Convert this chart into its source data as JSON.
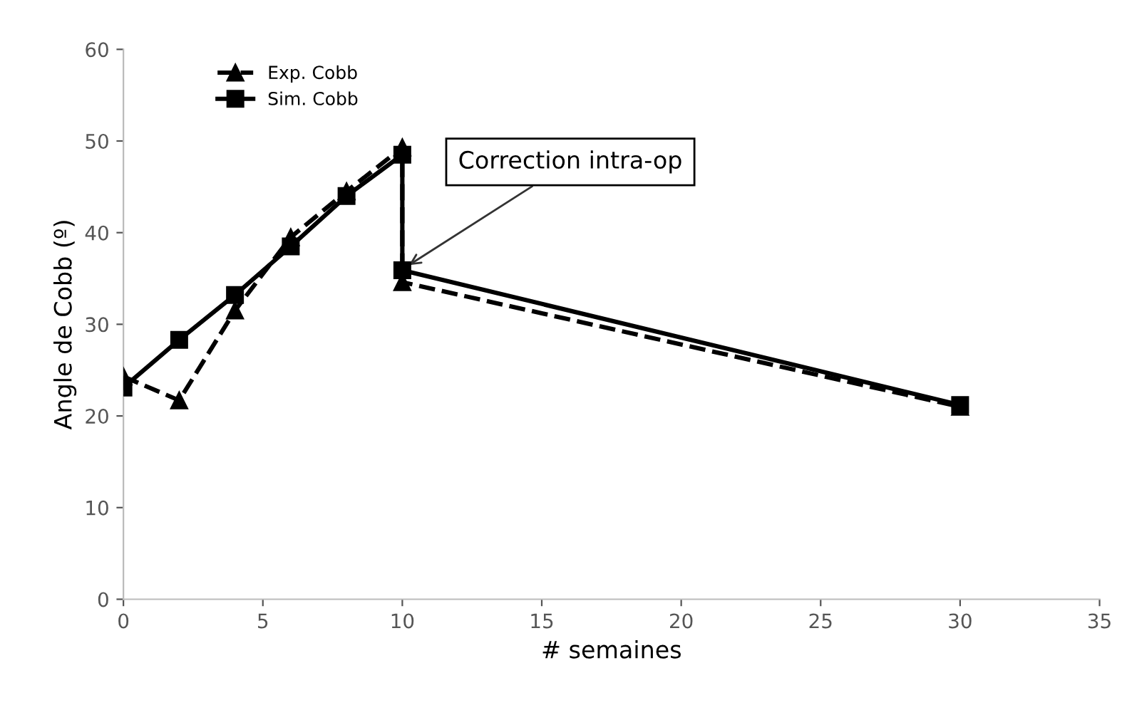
{
  "chart_data": {
    "type": "line",
    "xlabel": "# semaines",
    "ylabel": "Angle de Cobb (º)",
    "xlim": [
      0,
      35
    ],
    "xticks": [
      0,
      5,
      10,
      15,
      20,
      25,
      30,
      35
    ],
    "ylim": [
      0,
      60
    ],
    "yticks": [
      0,
      10,
      20,
      30,
      40,
      50,
      60
    ],
    "grid": false,
    "legend": "top left",
    "annotations": [
      {
        "text": "Correction intra-op",
        "x": 10,
        "y": 36
      }
    ],
    "series": [
      {
        "name": "Exp. Cobb",
        "color": "#000000",
        "marker": "triangle",
        "line_style": "dashed",
        "x": [
          0,
          2,
          4,
          6,
          8,
          10,
          10,
          30
        ],
        "values": [
          24.3,
          21.7,
          31.5,
          39.5,
          44.5,
          49.3,
          34.6,
          21
        ]
      },
      {
        "name": "Sim. Cobb",
        "color": "#000000",
        "marker": "square",
        "line_style": "solid",
        "x": [
          0,
          2,
          4,
          6,
          8,
          10,
          10,
          30
        ],
        "values": [
          23.1,
          28.3,
          33.2,
          38.5,
          44,
          48.5,
          35.9,
          21.2
        ]
      }
    ]
  }
}
